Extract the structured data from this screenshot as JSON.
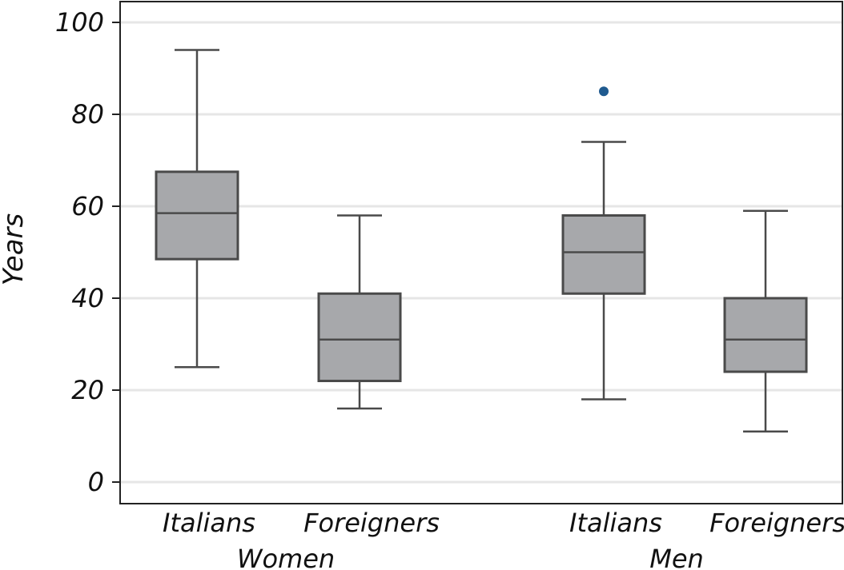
{
  "chart_data": {
    "type": "boxplot",
    "ylabel": "Years",
    "ylim": [
      0,
      100
    ],
    "yticks": [
      0,
      20,
      40,
      60,
      80,
      100
    ],
    "grid": true,
    "colors": {
      "box_fill": "#a7a8ab",
      "box_stroke": "#4a4a4a",
      "outlier": "#1f5a8f",
      "grid": "#e6e6e6"
    },
    "groups": [
      {
        "name": "Women",
        "boxes": [
          {
            "category": "Italians",
            "whisker_low": 25,
            "q1": 48.5,
            "median": 58.5,
            "q3": 67.5,
            "whisker_high": 94,
            "outliers": []
          },
          {
            "category": "Foreigners",
            "whisker_low": 16,
            "q1": 22,
            "median": 31,
            "q3": 41,
            "whisker_high": 58,
            "outliers": []
          }
        ]
      },
      {
        "name": "Men",
        "boxes": [
          {
            "category": "Italians",
            "whisker_low": 18,
            "q1": 41,
            "median": 50,
            "q3": 58,
            "whisker_high": 74,
            "outliers": [
              85
            ]
          },
          {
            "category": "Foreigners",
            "whisker_low": 11,
            "q1": 24,
            "median": 31,
            "q3": 40,
            "whisker_high": 59,
            "outliers": []
          }
        ]
      }
    ]
  }
}
